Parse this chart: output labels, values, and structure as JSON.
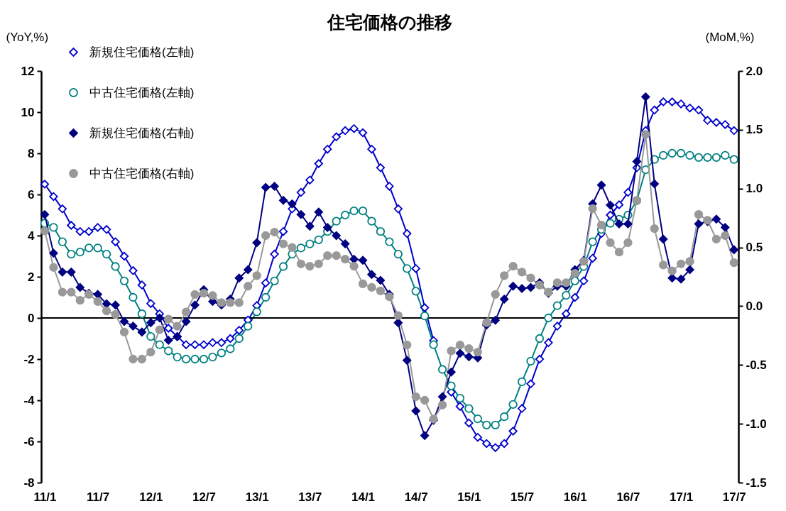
{
  "chart_data": {
    "type": "line",
    "title": "住宅価格の推移",
    "ylabel": "(YoY,%)",
    "y2label": "(MoM,%)",
    "categories": [
      "11/1",
      null,
      null,
      null,
      null,
      null,
      "11/7",
      null,
      null,
      null,
      null,
      null,
      "12/1",
      null,
      null,
      null,
      null,
      null,
      "12/7",
      null,
      null,
      null,
      null,
      null,
      "13/1",
      null,
      null,
      null,
      null,
      null,
      "13/7",
      null,
      null,
      null,
      null,
      null,
      "14/1",
      null,
      null,
      null,
      null,
      null,
      "14/7",
      null,
      null,
      null,
      null,
      null,
      "15/1",
      null,
      null,
      null,
      null,
      null,
      "15/7",
      null,
      null,
      null,
      null,
      null,
      "16/1",
      null,
      null,
      null,
      null,
      null,
      "16/7",
      null,
      null,
      null,
      null,
      null,
      "17/1",
      null,
      null,
      null,
      null,
      null,
      "17/7"
    ],
    "ylim": [
      -8,
      12
    ],
    "yticks": [
      -8,
      -6,
      -4,
      -2,
      0,
      2,
      4,
      6,
      8,
      10,
      12
    ],
    "y2lim": [
      -1.5,
      2
    ],
    "y2ticks": [
      -1.5,
      {
        "value": -1,
        "label": "-1.0"
      },
      -0.5,
      {
        "value": 0,
        "label": "0.0"
      },
      0.5,
      {
        "value": 1,
        "label": "1.0"
      },
      1.5,
      {
        "value": 2,
        "label": "2.0"
      }
    ],
    "legend": "top left",
    "ref_lines": [
      {
        "axis": "y",
        "value": 0,
        "color": "#000000"
      }
    ],
    "series": [
      {
        "name": "新規住宅価格(左軸)",
        "color": "#0000cc",
        "marker": "diamond",
        "values": [
          6.5,
          5.9,
          5.3,
          4.5,
          4.2,
          4.2,
          4.4,
          4.3,
          3.7,
          3.0,
          2.3,
          1.6,
          0.7,
          0.2,
          -0.5,
          -0.9,
          -1.3,
          -1.3,
          -1.3,
          -1.2,
          -1.2,
          -1.0,
          -0.6,
          -0.1,
          0.6,
          1.7,
          3.1,
          4.2,
          5.3,
          6.1,
          6.7,
          7.5,
          8.2,
          8.8,
          9.1,
          9.2,
          9.0,
          8.2,
          7.3,
          6.4,
          5.3,
          4.1,
          2.4,
          0.5,
          -1.1,
          null,
          -3.6,
          -4.3,
          -5.1,
          -5.8,
          -6.1,
          -6.3,
          -6.1,
          -5.5,
          -4.4,
          -3.2,
          -2.0,
          -1.2,
          -0.4,
          0.2,
          1.0,
          1.8,
          2.9,
          4.1,
          5.0,
          5.5,
          6.1,
          7.3,
          9.1,
          10.1,
          10.5,
          10.5,
          10.4,
          10.2,
          10.1,
          9.6,
          9.5,
          9.4,
          9.1
        ]
      },
      {
        "name": "中古住宅価格(左軸)",
        "color": "#008080",
        "marker": "circle",
        "values": [
          4.6,
          4.4,
          3.7,
          3.1,
          3.2,
          3.4,
          3.4,
          3.1,
          2.5,
          1.8,
          1.0,
          0.2,
          -0.9,
          -1.3,
          -1.6,
          -1.9,
          -2.0,
          -2.0,
          -2.0,
          -1.9,
          -1.7,
          -1.5,
          -1.0,
          -0.4,
          0.3,
          1.0,
          1.8,
          2.5,
          3.1,
          3.4,
          3.6,
          3.8,
          4.2,
          4.7,
          5.0,
          5.2,
          5.2,
          4.7,
          4.2,
          3.7,
          3.1,
          2.4,
          1.3,
          0.1,
          -1.3,
          -2.5,
          -3.3,
          -3.9,
          -4.4,
          -4.9,
          -5.2,
          -5.2,
          -4.8,
          -4.2,
          -3.1,
          -2.1,
          -1.0,
          0.0,
          0.6,
          1.1,
          1.8,
          2.5,
          3.7,
          4.3,
          4.6,
          4.8,
          5.0,
          5.7,
          7.2,
          7.7,
          7.9,
          8.0,
          8.0,
          7.9,
          7.8,
          7.8,
          7.8,
          7.9,
          7.7
        ]
      },
      {
        "name": "新規住宅価格(右軸)",
        "color": "#000080",
        "marker": "diamond",
        "axis": "y2",
        "values": [
          0.78,
          0.45,
          0.29,
          0.29,
          0.16,
          0.11,
          0.1,
          0.02,
          0.01,
          -0.13,
          -0.17,
          -0.22,
          -0.14,
          -0.1,
          -0.29,
          -0.26,
          -0.13,
          0.01,
          0.14,
          0.04,
          0.01,
          0.06,
          0.24,
          0.31,
          0.54,
          1.01,
          1.02,
          0.9,
          0.87,
          0.78,
          0.68,
          0.8,
          0.67,
          0.6,
          0.53,
          0.4,
          0.39,
          0.27,
          0.22,
          0.1,
          -0.14,
          -0.46,
          -0.89,
          -1.1,
          -0.97,
          -0.77,
          -0.56,
          -0.4,
          -0.43,
          -0.44,
          -0.16,
          -0.12,
          0.06,
          0.17,
          0.15,
          0.16,
          0.2,
          0.11,
          0.17,
          0.17,
          0.31,
          0.39,
          0.87,
          1.03,
          0.86,
          0.7,
          0.7,
          1.23,
          1.78,
          1.04,
          0.57,
          0.24,
          0.23,
          0.31,
          0.7,
          0.72,
          0.74,
          0.67,
          0.48
        ]
      },
      {
        "name": "中古住宅価格(右軸)",
        "color": "#999999",
        "marker": "circle",
        "axis": "y2",
        "values": [
          0.64,
          0.33,
          0.12,
          0.12,
          0.05,
          0.1,
          0.04,
          -0.04,
          -0.07,
          -0.22,
          -0.45,
          -0.45,
          -0.39,
          -0.2,
          -0.11,
          -0.17,
          -0.05,
          0.1,
          0.11,
          0.09,
          0.03,
          0.03,
          0.03,
          0.17,
          0.26,
          0.6,
          0.63,
          0.53,
          0.5,
          0.36,
          0.34,
          0.36,
          0.43,
          0.43,
          0.4,
          0.34,
          0.19,
          0.16,
          0.13,
          0.08,
          -0.08,
          -0.33,
          -0.77,
          -0.8,
          -0.96,
          -0.84,
          -0.38,
          -0.33,
          -0.36,
          -0.39,
          -0.14,
          0.1,
          0.26,
          0.34,
          0.29,
          0.24,
          0.18,
          0.12,
          0.2,
          0.2,
          0.28,
          0.38,
          0.83,
          0.69,
          0.54,
          0.46,
          0.54,
          0.9,
          1.46,
          0.66,
          0.35,
          0.3,
          0.36,
          0.38,
          0.78,
          0.73,
          0.57,
          0.6,
          0.37
        ]
      }
    ]
  }
}
